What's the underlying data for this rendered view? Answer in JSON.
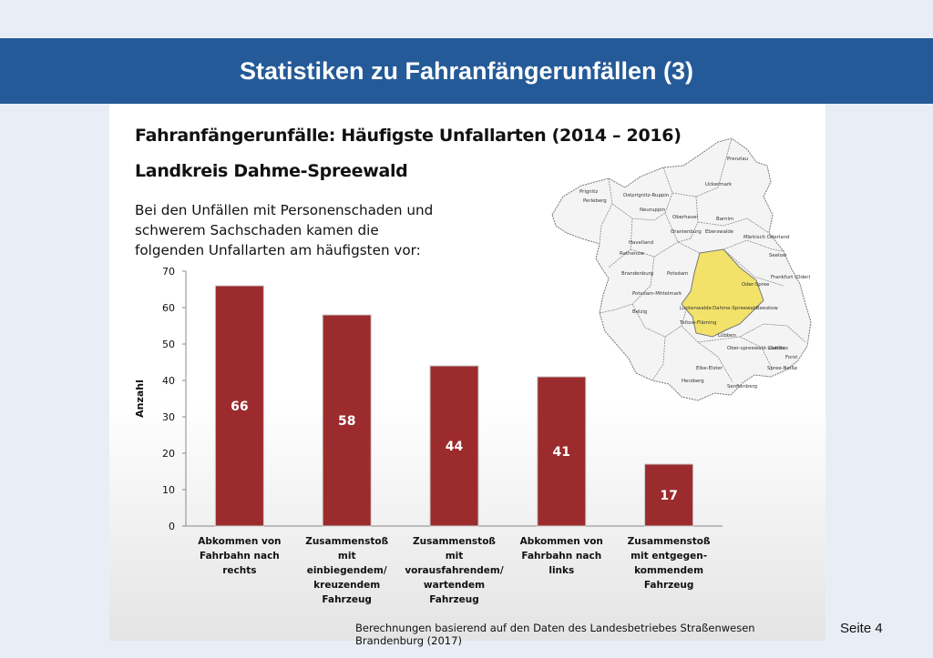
{
  "slide": {
    "title": "Statistiken zu Fahranfängerunfällen (3)",
    "page_label": "Seite 4"
  },
  "panel": {
    "heading": "Fahranfängerunfälle: Häufigste Unfallarten (2014 – 2016)",
    "subheading": "Landkreis Dahme-Spreewald",
    "intro": "Bei den Unfällen mit Personenschaden und schwerem Sachschaden kamen die folgenden Unfallarten am häufigsten vor:",
    "source": "Berechnungen basierend auf den Daten des Landesbetriebes Straßenwesen Brandenburg (2017)"
  },
  "map": {
    "highlight_region": "Dahme-Spreewald",
    "highlight_color": "#f2e26a",
    "region_labels": [
      "Prenzlau",
      "Prignitz",
      "Perleberg",
      "Ostprignitz-Ruppin",
      "Neuruppin",
      "Uckermark",
      "Oberhavel",
      "Oranienburg",
      "Barnim",
      "Eberswalde",
      "Havelland",
      "Rathenow",
      "Märkisch Oderland",
      "Seelow",
      "Brandenburg",
      "Potsdam",
      "Frankfurt (Oder)",
      "Potsdam-Mittelmark",
      "Belzig",
      "Oder-Spree",
      "Beeskow",
      "Luckenwalde",
      "Teltow-Fläming",
      "Dahme-Spreewald",
      "Lübben",
      "Ober-spreewald-Lausitz",
      "Cottbus",
      "Forst",
      "Spree-Neiße",
      "Elbe-Elster",
      "Herzberg",
      "Senftenberg"
    ]
  },
  "colors": {
    "bar": "#9b2b2d",
    "banner": "#245a97",
    "map_fill": "#f4f4f4"
  },
  "chart_data": {
    "type": "bar",
    "categories": [
      "Abkommen von Fahrbahn nach rechts",
      "Zusammenstoß mit einbiegendem/ kreuzendem Fahrzeug",
      "Zusammenstoß mit vorausfahrendem/ wartendem Fahrzeug",
      "Abkommen von Fahrbahn nach links",
      "Zusammenstoß mit entgegen-kommendem Fahrzeug"
    ],
    "category_lines": [
      [
        "Abkommen von",
        "Fahrbahn nach",
        "rechts"
      ],
      [
        "Zusammenstoß",
        "mit",
        "einbiegendem/",
        "kreuzendem",
        "Fahrzeug"
      ],
      [
        "Zusammenstoß",
        "mit",
        "vorausfahrendem/",
        "wartendem",
        "Fahrzeug"
      ],
      [
        "Abkommen von",
        "Fahrbahn nach",
        "links"
      ],
      [
        "Zusammenstoß",
        "mit entgegen-",
        "kommendem",
        "Fahrzeug"
      ]
    ],
    "values": [
      66,
      58,
      44,
      41,
      17
    ],
    "ylabel": "Anzahl",
    "ylim": [
      0,
      70
    ],
    "yticks": [
      0,
      10,
      20,
      30,
      40,
      50,
      60,
      70
    ],
    "grid": false,
    "data_labels": true
  }
}
